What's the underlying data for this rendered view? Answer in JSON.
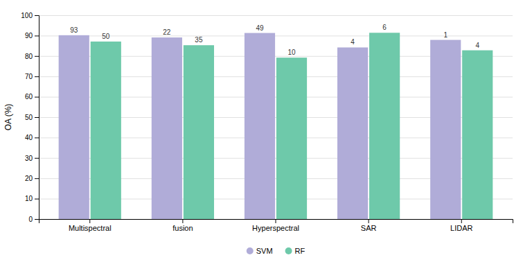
{
  "chart_data": {
    "type": "bar",
    "y_label": "OA (%)",
    "categories": [
      "Multispectral",
      "fusion",
      "Hyperspectral",
      "SAR",
      "LIDAR"
    ],
    "series": [
      {
        "name": "SVM",
        "color": "#b0acd8",
        "values": [
          90.2,
          89.1,
          91.3,
          84.2,
          87.9
        ],
        "counts": [
          93,
          22,
          49,
          4,
          1
        ]
      },
      {
        "name": "RF",
        "color": "#6ec9aa",
        "values": [
          87.1,
          85.3,
          79.2,
          91.4,
          82.8
        ],
        "counts": [
          50,
          35,
          10,
          6,
          4
        ]
      }
    ],
    "ylim": [
      0,
      100
    ],
    "yticks": [
      0,
      10,
      20,
      30,
      40,
      50,
      60,
      70,
      80,
      90,
      100
    ],
    "grid": true,
    "legend": "bottom"
  }
}
